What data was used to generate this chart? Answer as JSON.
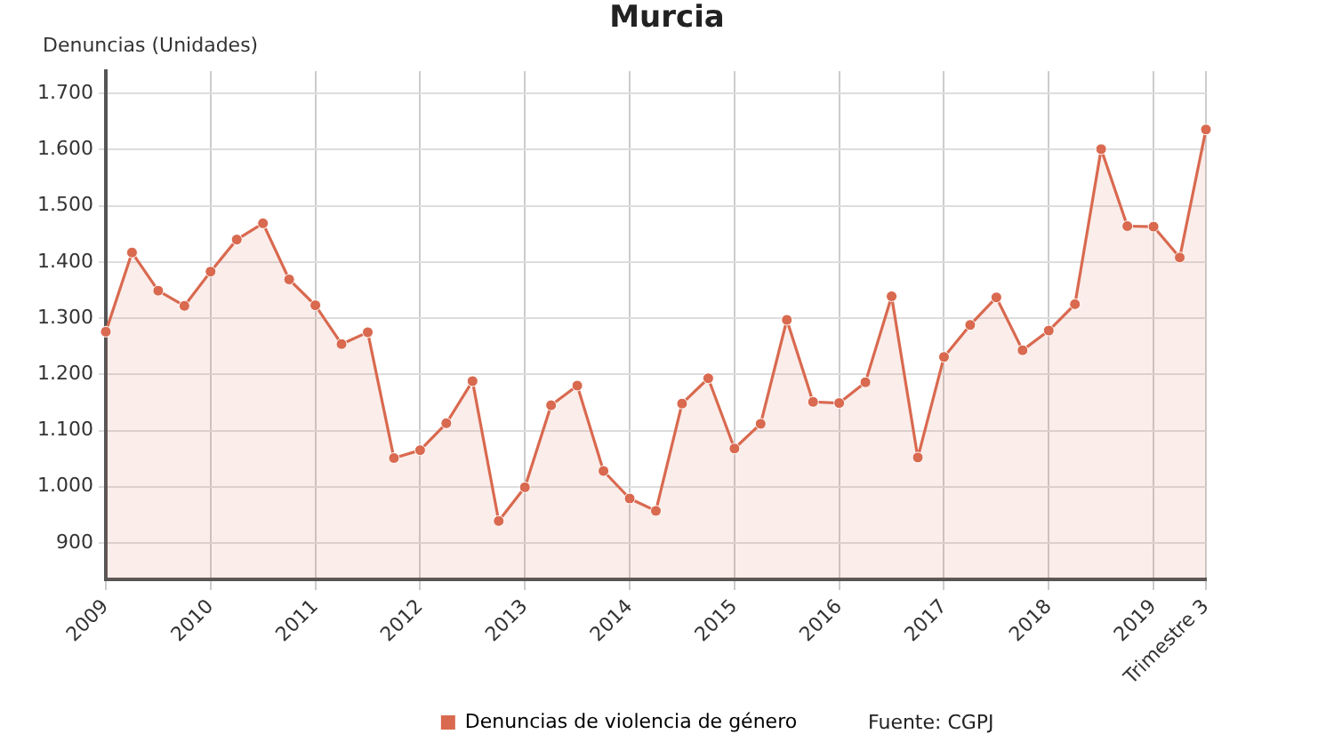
{
  "chart_data": {
    "type": "area",
    "title": "Murcia",
    "ylabel": "Denuncias (Unidades)",
    "categories": [
      "2009",
      null,
      null,
      null,
      "2010",
      null,
      null,
      null,
      "2011",
      null,
      null,
      null,
      "2012",
      null,
      null,
      null,
      "2013",
      null,
      null,
      null,
      "2014",
      null,
      null,
      null,
      "2015",
      null,
      null,
      null,
      "2016",
      null,
      null,
      null,
      "2017",
      null,
      null,
      null,
      "2018",
      null,
      null,
      null,
      "2019",
      null,
      "Trimestre 3"
    ],
    "series": [
      {
        "name": "Denuncias de violencia de género",
        "color": "#d9694f",
        "values": [
          1276,
          1417,
          1349,
          1322,
          1383,
          1440,
          1469,
          1369,
          1323,
          1254,
          1275,
          1051,
          1065,
          1113,
          1188,
          939,
          999,
          1145,
          1180,
          1028,
          979,
          957,
          1148,
          1193,
          1068,
          1112,
          1297,
          1151,
          1149,
          1186,
          1339,
          1052,
          1231,
          1288,
          1337,
          1243,
          1278,
          1325,
          1601,
          1464,
          1463,
          1408,
          1636
        ]
      }
    ],
    "ylim": [
      835,
      1740
    ],
    "yticks": [
      900,
      {
        "value": 1000,
        "label": "1.000"
      },
      {
        "value": 1100,
        "label": "1.100"
      },
      {
        "value": 1200,
        "label": "1.200"
      },
      {
        "value": 1300,
        "label": "1.300"
      },
      {
        "value": 1400,
        "label": "1.400"
      },
      {
        "value": 1500,
        "label": "1.500"
      },
      {
        "value": 1600,
        "label": "1.600"
      },
      {
        "value": 1700,
        "label": "1.700"
      }
    ],
    "grid": true,
    "legend": "bottom",
    "marker": "circle",
    "annotations": [
      "Fuente: CGPJ"
    ]
  }
}
